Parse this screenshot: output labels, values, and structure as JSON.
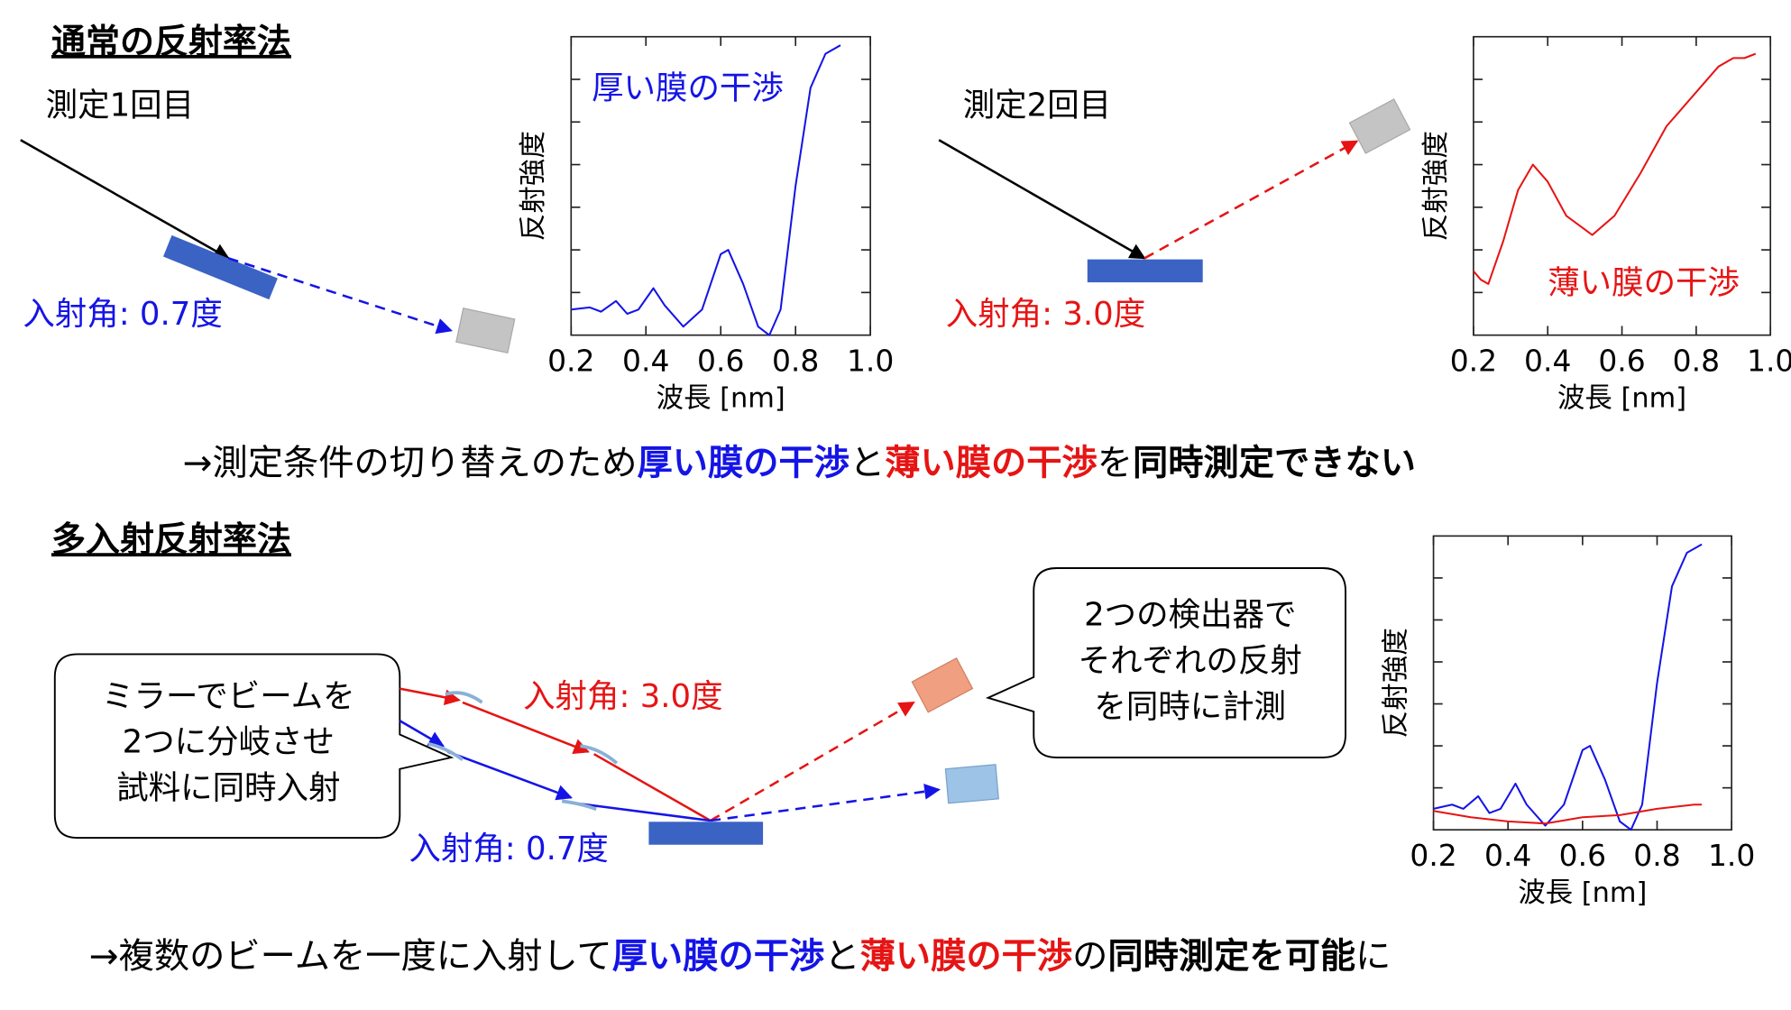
{
  "sections": [
    {
      "title": "通常の反射率法",
      "measure1": "測定1回目",
      "angle1": "入射角: 0.7度",
      "measure2": "測定2回目",
      "angle2": "入射角: 3.0度",
      "conclusion": [
        "→測定条件の切り替えのため",
        "厚い膜の干渉",
        "と",
        "薄い膜の干渉",
        "を",
        "同時測定できない"
      ]
    },
    {
      "title": "多入射反射率法",
      "callout_left": [
        "ミラーでビームを",
        "2つに分岐させ",
        "試料に同時入射"
      ],
      "callout_right": [
        "2つの検出器で",
        "それぞれの反射",
        "を同時に計測"
      ],
      "angle_red": "入射角: 3.0度",
      "angle_blue": "入射角: 0.7度",
      "conclusion": [
        "→複数のビームを一度に入射して",
        "厚い膜の干渉",
        "と",
        "薄い膜の干渉",
        "の",
        "同時測定を可能",
        "に"
      ]
    }
  ],
  "chart_data": [
    {
      "type": "line",
      "xlabel": "波長 [nm]",
      "ylabel": "反射強度",
      "xlim": [
        0.2,
        1.0
      ],
      "xticks": [
        0.2,
        0.4,
        0.6,
        0.8,
        {
          "value": 1,
          "label": "1.0"
        }
      ],
      "ylim": [
        0,
        7
      ],
      "yticks": [
        1,
        2,
        3,
        4,
        5,
        6
      ],
      "series": [
        {
          "name": "厚い膜の干渉",
          "color": "#1414e6",
          "x": [
            0.2,
            0.25,
            0.28,
            0.32,
            0.35,
            0.38,
            0.42,
            0.45,
            0.5,
            0.55,
            0.6,
            0.62,
            0.66,
            0.7,
            0.73,
            0.76,
            0.8,
            0.84,
            0.88,
            0.92
          ],
          "values": [
            0.6,
            0.65,
            0.55,
            0.8,
            0.5,
            0.6,
            1.1,
            0.7,
            0.2,
            0.6,
            1.9,
            2.0,
            1.2,
            0.2,
            0.0,
            0.6,
            3.5,
            5.8,
            6.6,
            6.8
          ]
        }
      ]
    },
    {
      "type": "line",
      "xlabel": "波長 [nm]",
      "ylabel": "反射強度",
      "xlim": [
        0.2,
        1.0
      ],
      "xticks": [
        0.2,
        0.4,
        0.6,
        0.8,
        {
          "value": 1,
          "label": "1.0"
        }
      ],
      "ylim": [
        0,
        7
      ],
      "yticks": [
        1,
        2,
        3,
        4,
        5,
        6
      ],
      "series": [
        {
          "name": "薄い膜の干渉",
          "color": "#e61414",
          "x": [
            0.2,
            0.22,
            0.24,
            0.28,
            0.32,
            0.36,
            0.4,
            0.45,
            0.52,
            0.58,
            0.65,
            0.72,
            0.8,
            0.86,
            0.9,
            0.93,
            0.96
          ],
          "values": [
            1.5,
            1.3,
            1.2,
            2.2,
            3.4,
            4.0,
            3.6,
            2.8,
            2.35,
            2.8,
            3.8,
            4.9,
            5.7,
            6.3,
            6.5,
            6.5,
            6.6
          ]
        }
      ]
    },
    {
      "type": "line",
      "xlabel": "波長 [nm]",
      "ylabel": "反射強度",
      "xlim": [
        0.2,
        1.0
      ],
      "xticks": [
        0.2,
        0.4,
        0.6,
        0.8,
        {
          "value": 1,
          "label": "1.0"
        }
      ],
      "ylim": [
        0,
        7
      ],
      "yticks": [
        1,
        2,
        3,
        4,
        5,
        6
      ],
      "series": [
        {
          "color": "#1414e6",
          "x": [
            0.2,
            0.25,
            0.28,
            0.32,
            0.35,
            0.38,
            0.42,
            0.45,
            0.5,
            0.55,
            0.6,
            0.62,
            0.66,
            0.7,
            0.73,
            0.76,
            0.8,
            0.84,
            0.88,
            0.92
          ],
          "values": [
            0.5,
            0.6,
            0.5,
            0.8,
            0.4,
            0.5,
            1.1,
            0.6,
            0.1,
            0.6,
            1.9,
            2.0,
            1.2,
            0.2,
            0.0,
            0.6,
            3.5,
            5.8,
            6.6,
            6.8
          ]
        },
        {
          "color": "#e61414",
          "x": [
            0.2,
            0.3,
            0.4,
            0.5,
            0.6,
            0.7,
            0.8,
            0.9,
            0.92
          ],
          "values": [
            0.45,
            0.3,
            0.2,
            0.15,
            0.3,
            0.35,
            0.5,
            0.6,
            0.6
          ]
        }
      ]
    }
  ]
}
